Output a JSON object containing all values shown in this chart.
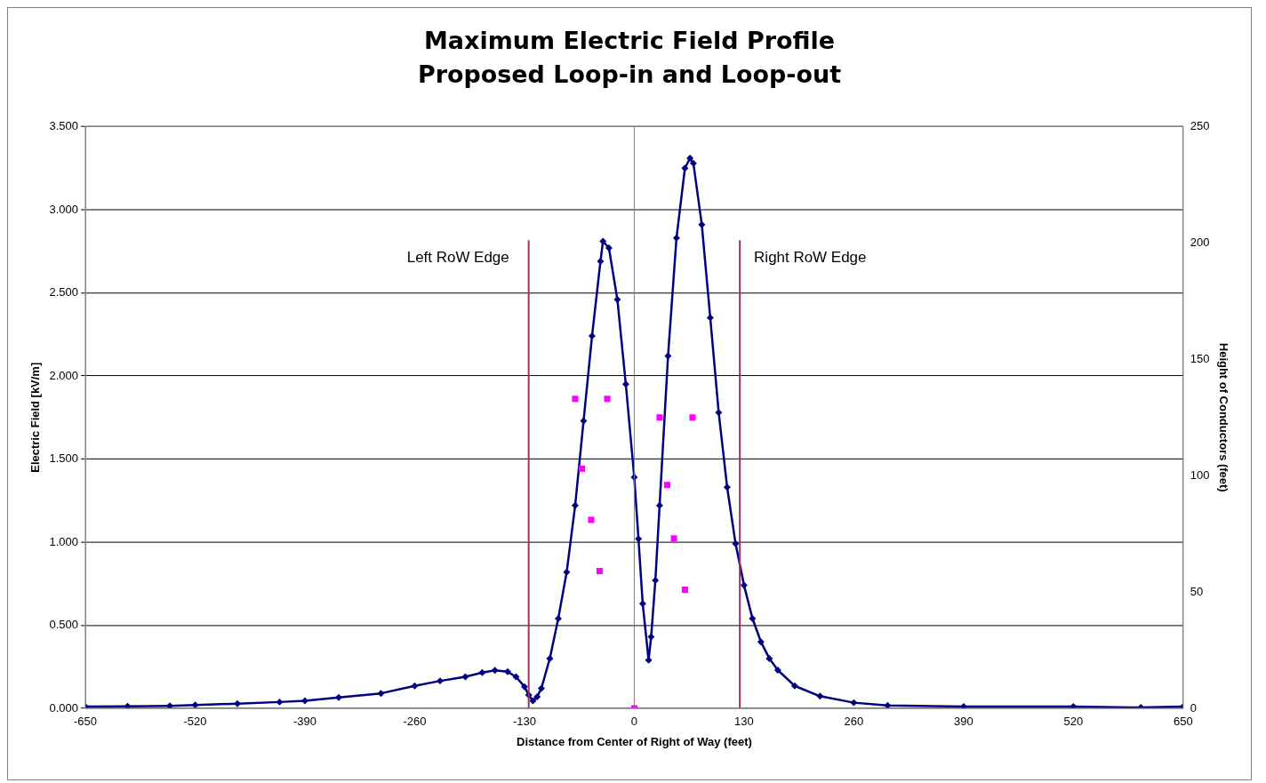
{
  "chart_data": {
    "type": "line",
    "title": "Maximum Electric Field Profile",
    "subtitle": "Proposed Loop-in and Loop-out",
    "xlabel": "Distance from Center of Right of Way (feet)",
    "ylabel": "Electric Field [kV/m]",
    "y2label": "Height of Conductors (feet)",
    "xlim": [
      -650,
      650
    ],
    "xticks": [
      -650,
      -520,
      -390,
      -260,
      -130,
      0,
      130,
      260,
      390,
      520,
      650
    ],
    "ylim": [
      0,
      3.5
    ],
    "yticks": [
      {
        "value": 0,
        "label": "0.000"
      },
      {
        "value": 0.5,
        "label": "0.500"
      },
      {
        "value": 1,
        "label": "1.000"
      },
      {
        "value": 1.5,
        "label": "1.500"
      },
      {
        "value": 2,
        "label": "2.000"
      },
      {
        "value": 2.5,
        "label": "2.500"
      },
      {
        "value": 3,
        "label": "3.000"
      },
      {
        "value": 3.5,
        "label": "3.500"
      }
    ],
    "y2lim": [
      0,
      250
    ],
    "y2ticks": [
      0,
      50,
      100,
      150,
      200,
      250
    ],
    "grid": "y",
    "legend": false,
    "series": [
      {
        "type": "line",
        "color": "#000080",
        "marker": "diamond",
        "line_style": "solid",
        "x": [
          -650,
          -600,
          -550,
          -520,
          -470,
          -420,
          -390,
          -350,
          -300,
          -260,
          -230,
          -200,
          -180,
          -165,
          -150,
          -140,
          -130,
          -125,
          -120,
          -115,
          -110,
          -100,
          -90,
          -80,
          -70,
          -60,
          -50,
          -40,
          -37,
          -30,
          -20,
          -10,
          0,
          5,
          10,
          17,
          20,
          25,
          30,
          40,
          50,
          60,
          66,
          70,
          80,
          90,
          100,
          110,
          120,
          130,
          140,
          150,
          160,
          170,
          190,
          220,
          260,
          300,
          390,
          520,
          600,
          650
        ],
        "values": [
          0.01,
          0.012,
          0.015,
          0.02,
          0.028,
          0.038,
          0.045,
          0.065,
          0.09,
          0.135,
          0.165,
          0.19,
          0.215,
          0.228,
          0.22,
          0.19,
          0.13,
          0.08,
          0.045,
          0.07,
          0.12,
          0.3,
          0.54,
          0.82,
          1.22,
          1.73,
          2.24,
          2.69,
          2.81,
          2.77,
          2.46,
          1.95,
          1.39,
          1.02,
          0.63,
          0.29,
          0.43,
          0.77,
          1.22,
          2.12,
          2.83,
          3.25,
          3.31,
          3.28,
          2.91,
          2.35,
          1.78,
          1.33,
          0.99,
          0.74,
          0.54,
          0.4,
          0.3,
          0.23,
          0.135,
          0.073,
          0.034,
          0.017,
          0.01,
          0.01,
          0.005,
          0.01
        ]
      },
      {
        "type": "scatter",
        "axis": "y2",
        "color": "#ff00ff",
        "marker": "square",
        "x": [
          -70,
          -32,
          -62,
          -51,
          -41,
          0,
          30,
          69,
          39,
          47,
          60
        ],
        "values": [
          133,
          133,
          103,
          81,
          59,
          0,
          125,
          125,
          96,
          73,
          51
        ]
      }
    ],
    "ref_lines": [
      {
        "axis": "x",
        "value": 0,
        "color": "#808080"
      },
      {
        "axis": "x",
        "value": -125,
        "label": "Left RoW Edge",
        "color": "#993366"
      },
      {
        "axis": "x",
        "value": 125,
        "label": "Right RoW Edge",
        "color": "#993366"
      }
    ]
  }
}
